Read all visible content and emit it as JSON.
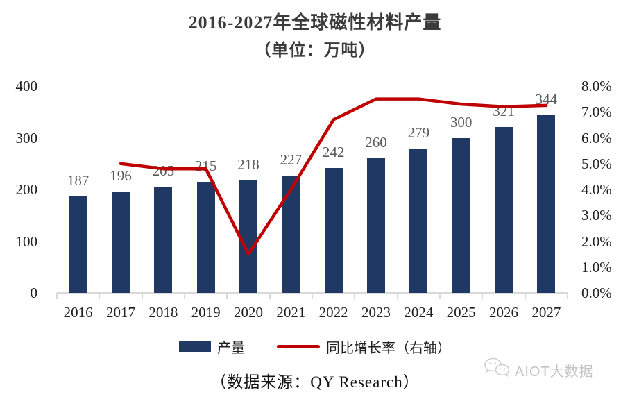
{
  "title": {
    "line1": "2016-2027年全球磁性材料产量",
    "line2": "（单位：万吨）"
  },
  "source_note": "（数据来源：QY Research）",
  "watermark": {
    "icon": "wechat-icon",
    "label": "AIOT大数据"
  },
  "legend": [
    {
      "label": "产量",
      "type": "bar",
      "color": "#1F3864"
    },
    {
      "label": "同比增长率（右轴）",
      "type": "line",
      "color": "#C00000"
    }
  ],
  "chart_data": {
    "type": "bar+line combo",
    "title": "2016-2027年全球磁性材料产量（单位：万吨）",
    "categories": [
      "2016",
      "2017",
      "2018",
      "2019",
      "2020",
      "2021",
      "2022",
      "2023",
      "2024",
      "2025",
      "2026",
      "2027"
    ],
    "series": [
      {
        "name": "产量",
        "type": "bar",
        "axis": "left",
        "color": "#1F3864",
        "values": [
          187,
          196,
          205,
          215,
          218,
          227,
          242,
          260,
          279,
          300,
          321,
          344
        ]
      },
      {
        "name": "同比增长率（右轴）",
        "type": "line",
        "axis": "right",
        "color": "#C00000",
        "values": [
          null,
          5.0,
          4.8,
          4.8,
          1.5,
          4.0,
          6.7,
          7.5,
          7.5,
          7.3,
          7.2,
          7.25
        ]
      }
    ],
    "left_axis": {
      "min": 0,
      "max": 400,
      "ticks": [
        "400",
        "300",
        "200",
        "100",
        "0"
      ]
    },
    "right_axis": {
      "min": 0,
      "max": 8,
      "ticks": [
        "8.0%",
        "7.0%",
        "6.0%",
        "5.0%",
        "4.0%",
        "3.0%",
        "2.0%",
        "1.0%",
        "0.0%"
      ]
    },
    "grid": false,
    "legend_position": "bottom",
    "axis_color": "#D9D9D9",
    "bar_label_color": "#595959",
    "tick_label_color": "#1f1f1f"
  }
}
